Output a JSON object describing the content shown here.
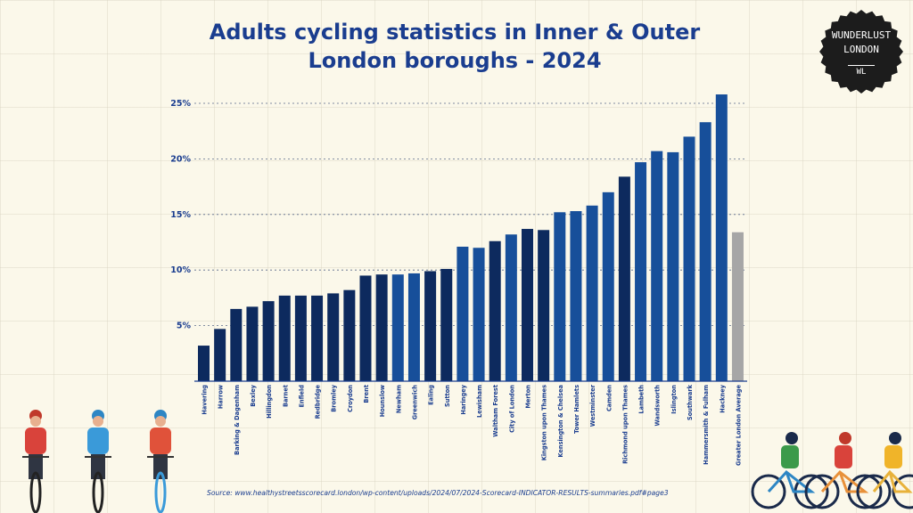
{
  "header": {
    "title_line1": "Adults cycling statistics in Inner & Outer",
    "title_line2": "London boroughs - 2024"
  },
  "badge": {
    "line1": "WUNDERLUST",
    "line2": "LONDON",
    "initials": "WL"
  },
  "source": "Source: www.healthystreetsscorecard.london/wp-content/uploads/2024/07/2024-Scorecard-INDICATOR-RESULTS-summaries.pdf#page3",
  "colors": {
    "outer": "#0d2a5e",
    "inner": "#174f9a",
    "average": "#a6a6a6",
    "axis": "#1a3d8f",
    "background": "#fbf8ea"
  },
  "chart_data": {
    "type": "bar",
    "title": "Adults cycling statistics in Inner & Outer London boroughs - 2024",
    "xlabel": "",
    "ylabel": "",
    "ylim": [
      0,
      26
    ],
    "yticks": [
      5,
      10,
      15,
      20,
      25
    ],
    "ytick_labels": [
      "5%",
      "10%",
      "15%",
      "20%",
      "25%"
    ],
    "grid": "horizontal dotted",
    "categories": [
      "Havering",
      "Harrow",
      "Barking & Dagenham",
      "Bexley",
      "Hillingdon",
      "Barnet",
      "Enfield",
      "Redbridge",
      "Bromley",
      "Croydon",
      "Brent",
      "Hounslow",
      "Newham",
      "Greenwich",
      "Ealing",
      "Sutton",
      "Haringey",
      "Lewisham",
      "Waltham Forest",
      "City of London",
      "Merton",
      "Kingston upon Thames",
      "Kensington & Chelsea",
      "Tower Hamlets",
      "Westminster",
      "Camden",
      "Richmond upon Thames",
      "Lambeth",
      "Wandsworth",
      "Islington",
      "Southwark",
      "Hammersmith & Fulham",
      "Hackney",
      "Greater London Average"
    ],
    "values": [
      3.2,
      4.7,
      6.5,
      6.7,
      7.2,
      7.7,
      7.7,
      7.7,
      7.9,
      8.2,
      9.5,
      9.6,
      9.6,
      9.7,
      9.9,
      10.1,
      12.1,
      12.0,
      12.6,
      13.2,
      13.7,
      13.6,
      15.2,
      15.3,
      15.8,
      17.0,
      18.4,
      19.7,
      20.7,
      20.6,
      22.0,
      23.3,
      25.8,
      13.4
    ],
    "groups": [
      "outer",
      "outer",
      "outer",
      "outer",
      "outer",
      "outer",
      "outer",
      "outer",
      "outer",
      "outer",
      "outer",
      "outer",
      "inner",
      "inner",
      "outer",
      "outer",
      "inner",
      "inner",
      "outer",
      "inner",
      "outer",
      "outer",
      "inner",
      "inner",
      "inner",
      "inner",
      "outer",
      "inner",
      "inner",
      "inner",
      "inner",
      "inner",
      "inner",
      "average"
    ]
  }
}
